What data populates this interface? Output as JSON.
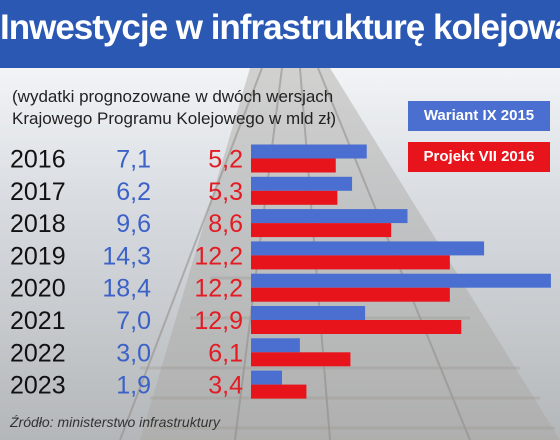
{
  "title": "Inwestycje w infrastrukturę kolejową",
  "subtitle_line1": "(wydatki prognozowane w dwóch wersjach",
  "subtitle_line2": "Krajowego Programu Kolejowego w mld zł)",
  "source": "Źródło:  ministerstwo infrastruktury",
  "colors": {
    "header": "#2b58b3",
    "series_a": "#4a6fd1",
    "series_b": "#e8141b"
  },
  "chart_data": {
    "type": "bar",
    "orientation": "horizontal",
    "categories": [
      "2016",
      "2017",
      "2018",
      "2019",
      "2020",
      "2021",
      "2022",
      "2023"
    ],
    "series": [
      {
        "name": "Wariant IX 2015",
        "color": "#4a6fd1",
        "values": [
          7.1,
          6.2,
          9.6,
          14.3,
          18.4,
          7.0,
          3.0,
          1.9
        ],
        "labels": [
          "7,1",
          "6,2",
          "9,6",
          "14,3",
          "18,4",
          "7,0",
          "3,0",
          "1,9"
        ]
      },
      {
        "name": "Projekt VII 2016",
        "color": "#e8141b",
        "values": [
          5.2,
          5.3,
          8.6,
          12.2,
          12.2,
          12.9,
          6.1,
          3.4
        ],
        "labels": [
          "5,2",
          "5,3",
          "8,6",
          "12,2",
          "12,2",
          "12,9",
          "6,1",
          "3,4"
        ]
      }
    ],
    "legend": "top-right",
    "grid": false
  }
}
